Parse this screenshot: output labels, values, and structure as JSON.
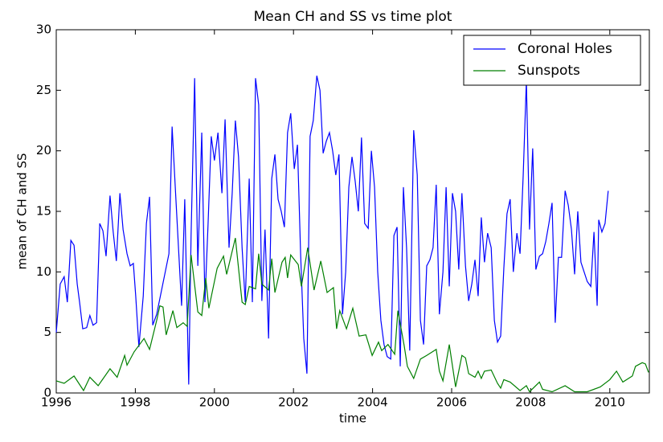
{
  "chart_data": {
    "type": "line",
    "title": "Mean CH and SS vs time plot",
    "x_label": "time",
    "y_label": "mean of CH and SS",
    "xlim": [
      1996,
      2011
    ],
    "xticks": [
      1996,
      1998,
      2000,
      2002,
      2004,
      2006,
      2008,
      2010
    ],
    "ylim": [
      0,
      30
    ],
    "yticks": [
      0,
      5,
      10,
      15,
      20,
      25,
      30
    ],
    "grid": false,
    "legend": "upper right",
    "series": [
      {
        "name": "Coronal Holes",
        "color": "#0000ff",
        "x": [
          1996.0,
          1996.1,
          1996.2,
          1996.28,
          1996.37,
          1996.45,
          1996.53,
          1996.59,
          1996.67,
          1996.77,
          1996.85,
          1996.93,
          1997.02,
          1997.1,
          1997.18,
          1997.26,
          1997.36,
          1997.44,
          1997.52,
          1997.61,
          1997.69,
          1997.79,
          1997.87,
          1997.95,
          1998.01,
          1998.09,
          1998.2,
          1998.28,
          1998.36,
          1998.44,
          1998.54,
          1998.85,
          1998.93,
          1999.01,
          1999.17,
          1999.25,
          1999.35,
          1999.41,
          1999.5,
          1999.58,
          1999.68,
          1999.76,
          1999.84,
          1999.92,
          2000.0,
          2000.09,
          2000.19,
          2000.27,
          2000.37,
          2000.45,
          2000.53,
          2000.61,
          2000.7,
          2000.78,
          2000.88,
          2000.96,
          2001.04,
          2001.12,
          2001.2,
          2001.28,
          2001.37,
          2001.45,
          2001.53,
          2001.61,
          2001.69,
          2001.77,
          2001.85,
          2001.93,
          2002.02,
          2002.1,
          2002.18,
          2002.26,
          2002.34,
          2002.42,
          2002.5,
          2002.59,
          2002.67,
          2002.75,
          2002.83,
          2002.91,
          2002.99,
          2003.07,
          2003.15,
          2003.24,
          2003.32,
          2003.4,
          2003.48,
          2003.56,
          2003.64,
          2003.72,
          2003.8,
          2003.89,
          2003.97,
          2004.05,
          2004.13,
          2004.21,
          2004.29,
          2004.37,
          2004.46,
          2004.54,
          2004.62,
          2004.7,
          2004.78,
          2004.86,
          2004.94,
          2005.04,
          2005.13,
          2005.21,
          2005.29,
          2005.37,
          2005.45,
          2005.53,
          2005.61,
          2005.69,
          2005.78,
          2005.86,
          2005.94,
          2006.02,
          2006.1,
          2006.18,
          2006.26,
          2006.35,
          2006.43,
          2006.51,
          2006.59,
          2006.67,
          2006.75,
          2006.83,
          2006.91,
          2007.0,
          2007.08,
          2007.16,
          2007.24,
          2007.32,
          2007.4,
          2007.48,
          2007.56,
          2007.65,
          2007.73,
          2007.81,
          2007.89,
          2007.97,
          2008.05,
          2008.13,
          2008.22,
          2008.3,
          2008.38,
          2008.46,
          2008.54,
          2008.62,
          2008.7,
          2008.78,
          2008.87,
          2008.95,
          2009.03,
          2009.11,
          2009.19,
          2009.27,
          2009.35,
          2009.43,
          2009.52,
          2009.6,
          2009.68,
          2009.72,
          2009.8,
          2009.88,
          2009.96
        ],
        "values": [
          5,
          9,
          9.6,
          7.5,
          12.6,
          12.2,
          9,
          7.5,
          5.3,
          5.4,
          6.4,
          5.6,
          5.8,
          14,
          13.4,
          11.3,
          16.3,
          13.3,
          10.9,
          16.5,
          13.5,
          11.5,
          10.5,
          10.7,
          8,
          3.8,
          8,
          14,
          16.2,
          5.6,
          6.5,
          11.5,
          22,
          17,
          7.2,
          16,
          0.7,
          13,
          26,
          10.5,
          21.5,
          7.5,
          14,
          21.2,
          19.2,
          21.5,
          16.5,
          22.6,
          12,
          16.5,
          22.5,
          19.5,
          12,
          7.5,
          17.7,
          7.5,
          26,
          23.8,
          7.6,
          13.5,
          4.5,
          17.7,
          19.7,
          16,
          15,
          13.7,
          21.5,
          23.1,
          18.5,
          20.5,
          11.5,
          4.5,
          1.6,
          21.2,
          22.5,
          26.2,
          25,
          19.8,
          20.8,
          21.5,
          20,
          18,
          19.7,
          6.5,
          10,
          17,
          19.5,
          17.5,
          15,
          21.1,
          14,
          13.6,
          20,
          17,
          10,
          6,
          4,
          3,
          2.8,
          13,
          13.7,
          2.2,
          17,
          12,
          3.5,
          21.7,
          18,
          6,
          4,
          10.5,
          11,
          12,
          17.2,
          6.5,
          10,
          17,
          8.8,
          16.5,
          15,
          10.2,
          16.5,
          10.5,
          7.6,
          9,
          11,
          8,
          14.5,
          10.8,
          13.2,
          12,
          6,
          4.2,
          4.7,
          10.3,
          14.8,
          16,
          10,
          13.2,
          11.5,
          18,
          25.8,
          13.5,
          20.2,
          10.2,
          11.3,
          11.5,
          12.5,
          14,
          15.7,
          5.8,
          11.2,
          11.2,
          16.7,
          15.5,
          13.5,
          9.8,
          15,
          10.8,
          10,
          9.2,
          8.8,
          13.3,
          7.2,
          14.3,
          13.3,
          14,
          16.7
        ]
      },
      {
        "name": "Sunspots",
        "color": "#007f00",
        "x": [
          1996.0,
          1996.2,
          1996.45,
          1996.69,
          1996.85,
          1997.06,
          1997.36,
          1997.54,
          1997.73,
          1997.79,
          1997.97,
          1998.22,
          1998.36,
          1998.54,
          1998.62,
          1998.7,
          1998.78,
          1998.95,
          1999.05,
          1999.21,
          1999.31,
          1999.41,
          1999.58,
          1999.68,
          1999.78,
          1999.86,
          2000.07,
          2000.23,
          2000.31,
          2000.53,
          2000.7,
          2000.78,
          2000.88,
          2001.04,
          2001.12,
          2001.2,
          2001.37,
          2001.45,
          2001.53,
          2001.71,
          2001.79,
          2001.85,
          2001.93,
          2002.12,
          2002.2,
          2002.36,
          2002.52,
          2002.69,
          2002.85,
          2003.01,
          2003.09,
          2003.17,
          2003.34,
          2003.5,
          2003.66,
          2003.83,
          2003.99,
          2004.15,
          2004.23,
          2004.39,
          2004.56,
          2004.64,
          2004.8,
          2004.88,
          2005.04,
          2005.21,
          2005.37,
          2005.61,
          2005.69,
          2005.78,
          2005.94,
          2006.1,
          2006.26,
          2006.35,
          2006.43,
          2006.59,
          2006.67,
          2006.75,
          2006.83,
          2007.0,
          2007.16,
          2007.24,
          2007.32,
          2007.48,
          2007.73,
          2007.89,
          2007.97,
          2008.22,
          2008.3,
          2008.54,
          2008.87,
          2009.11,
          2009.43,
          2009.76,
          2010.0,
          2010.17,
          2010.33,
          2010.57,
          2010.65,
          2010.82,
          2010.9,
          2010.98
        ],
        "values": [
          1.0,
          0.8,
          1.4,
          0.2,
          1.3,
          0.6,
          2.0,
          1.3,
          3.1,
          2.3,
          3.4,
          4.5,
          3.6,
          6.0,
          7.2,
          7.1,
          4.8,
          6.8,
          5.4,
          5.8,
          5.5,
          11.4,
          6.7,
          6.4,
          9.5,
          7.0,
          10.3,
          11.3,
          9.8,
          12.8,
          7.5,
          7.3,
          8.8,
          8.6,
          11.5,
          9.0,
          8.5,
          11.1,
          8.3,
          10.8,
          11.2,
          9.5,
          11.4,
          10.6,
          8.8,
          12.0,
          8.5,
          10.9,
          8.3,
          8.7,
          5.3,
          6.8,
          5.3,
          7.0,
          4.7,
          4.8,
          3.1,
          4.2,
          3.5,
          4.0,
          3.2,
          6.8,
          3.9,
          2.2,
          1.2,
          2.8,
          3.1,
          3.6,
          1.8,
          1.0,
          4.0,
          0.5,
          3.1,
          2.9,
          1.6,
          1.3,
          1.8,
          1.2,
          1.8,
          1.9,
          0.8,
          0.4,
          1.1,
          0.9,
          0.2,
          0.6,
          0.1,
          0.9,
          0.3,
          0.1,
          0.6,
          0.1,
          0.1,
          0.5,
          1.1,
          1.8,
          0.9,
          1.4,
          2.2,
          2.5,
          2.4,
          1.7
        ]
      }
    ]
  }
}
